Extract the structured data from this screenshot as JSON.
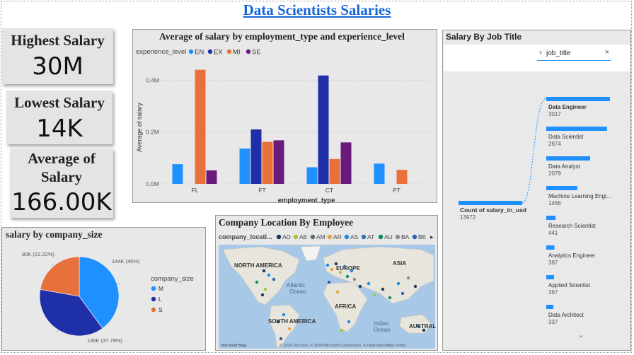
{
  "title": "Data Scientists Salaries",
  "kpis": {
    "highest_label": "Highest Salary",
    "highest_value": "30M",
    "lowest_label": "Lowest Salary",
    "lowest_value": "14K",
    "average_label_line1": "Average of",
    "average_label_line2": "Salary",
    "average_value": "166.00K"
  },
  "bar_panel": {
    "title": "Average of salary by employment_type and experience_level",
    "legend_title": "experience_level",
    "ylabel": "Average of salary",
    "xlabel": "employment_type"
  },
  "pie_panel": {
    "title": "salary by company_size",
    "legend_title": "company_size"
  },
  "map_panel": {
    "title": "Company Location By Employee",
    "legend_title": "company_locati...",
    "legend_items": [
      "AD",
      "AE",
      "AM",
      "AR",
      "AS",
      "AT",
      "AU",
      "BA",
      "BE"
    ],
    "legend_colors": [
      "#1a3a5c",
      "#a0c838",
      "#5a6e6e",
      "#e8a040",
      "#1e88e5",
      "#3a6fa8",
      "#0d8a6a",
      "#8a8a8a",
      "#2b5fb3"
    ],
    "labels": {
      "north_america": "NORTH AMERICA",
      "europe": "EUROPE",
      "asia": "ASIA",
      "atlantic": "Atlantic",
      "ocean1": "Ocean",
      "africa": "AFRICA",
      "south_america": "SOUTH AMERICA",
      "indian": "Indian",
      "ocean2": "Ocean",
      "australia": "AUSTRAL"
    },
    "attribution": "© 2024 TomTom, © 2024 Microsoft Corporation, © OpenStreetMap  Terms",
    "logo": "Microsoft Bing"
  },
  "job_panel": {
    "title": "Salary By Job Title",
    "search_value": "job_title",
    "root_label": "Count of salary_in_usd",
    "root_value": "13972",
    "items": [
      {
        "label": "Data Engineer",
        "value": "3017"
      },
      {
        "label": "Data Scientist",
        "value": "2874"
      },
      {
        "label": "Data Analyst",
        "value": "2079"
      },
      {
        "label": "Machine Learning Engi...",
        "value": "1466"
      },
      {
        "label": "Research Scientist",
        "value": "441"
      },
      {
        "label": "Analytics Engineer",
        "value": "387"
      },
      {
        "label": "Applied Scientist",
        "value": "367"
      },
      {
        "label": "Data Architect",
        "value": "337"
      }
    ]
  },
  "chart_data": [
    {
      "type": "bar",
      "title": "Average of salary by employment_type and experience_level",
      "xlabel": "employment_type",
      "ylabel": "Average of salary",
      "categories": [
        "FL",
        "FT",
        "CT",
        "PT"
      ],
      "yticks": [
        "0.0M",
        "0.2M",
        "0.4M"
      ],
      "ylim": [
        0,
        0.48
      ],
      "legend_title": "experience_level",
      "legend_position": "top-left",
      "series": [
        {
          "name": "EN",
          "color": "#1e90ff",
          "values": [
            0.076,
            0.136,
            0.064,
            0.078
          ]
        },
        {
          "name": "EX",
          "color": "#1f2fa8",
          "values": [
            null,
            0.21,
            0.418,
            null
          ]
        },
        {
          "name": "MI",
          "color": "#e8703a",
          "values": [
            0.44,
            0.162,
            0.096,
            0.054
          ]
        },
        {
          "name": "SE",
          "color": "#6a1a7a",
          "values": [
            0.052,
            0.168,
            0.16,
            null
          ]
        }
      ]
    },
    {
      "type": "pie",
      "title": "salary by company_size",
      "legend_title": "company_size",
      "legend_position": "right",
      "slices": [
        {
          "name": "M",
          "value": 144,
          "label": "144K (40%)",
          "color": "#1e90ff"
        },
        {
          "name": "L",
          "value": 136,
          "label": "136K (37.78%)",
          "color": "#1f2fa8"
        },
        {
          "name": "S",
          "value": 80,
          "label": "80K (22.22%)",
          "color": "#e8703a"
        }
      ]
    }
  ]
}
